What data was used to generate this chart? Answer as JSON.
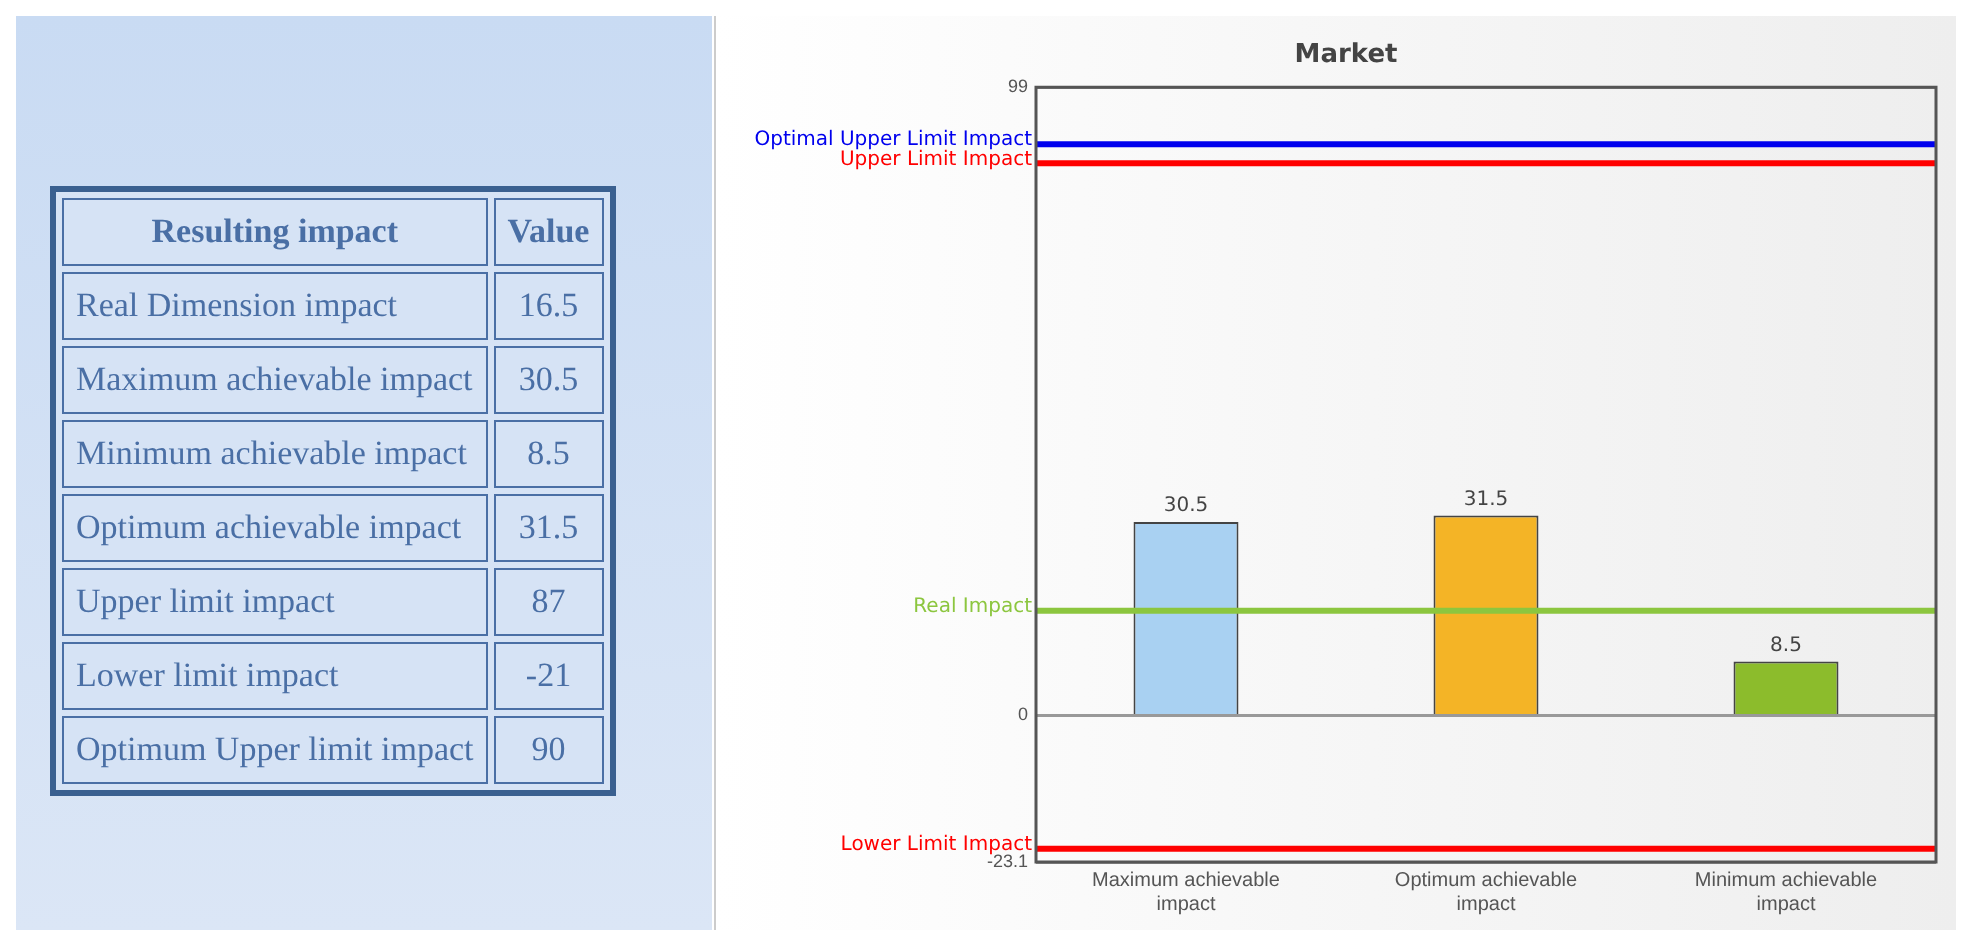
{
  "chart_data": [
    {
      "type": "other",
      "annotations": [
        "Resulting impact",
        "Value"
      ],
      "categories": [
        "Real Dimension impact",
        "Maximum achievable impact",
        "Minimum achievable impact",
        "Optimum achievable impact",
        "Upper limit impact",
        "Lower limit impact",
        "Optimum Upper limit impact"
      ],
      "values": [
        16.5,
        30.5,
        8.5,
        31.5,
        87,
        -21,
        90
      ],
      "data_labels": true
    },
    {
      "type": "bar",
      "title": "Market",
      "categories": [
        "Maximum achievable impact",
        "Optimum achievable impact",
        "Minimum achievable impact"
      ],
      "values": [
        30.5,
        31.5,
        8.5
      ],
      "colors": [
        "#a9d1f2",
        "#f4b426",
        "#8cbc2c"
      ],
      "ylim": [
        -23.1,
        99
      ],
      "yticks": [
        -23.1,
        0,
        99
      ],
      "grid": "y",
      "legend": false,
      "data_labels": true,
      "ref_lines": [
        {
          "axis": "y",
          "value": 90,
          "label": "Optimal Upper Limit Impact",
          "color": "#0000ee"
        },
        {
          "axis": "y",
          "value": 87,
          "label": "Upper Limit Impact",
          "color": "#ff0000"
        },
        {
          "axis": "y",
          "value": 16.5,
          "label": "Real Impact",
          "color": "#8cc63f"
        },
        {
          "axis": "y",
          "value": -21,
          "label": "Lower Limit Impact",
          "color": "#ff0000"
        }
      ]
    }
  ]
}
